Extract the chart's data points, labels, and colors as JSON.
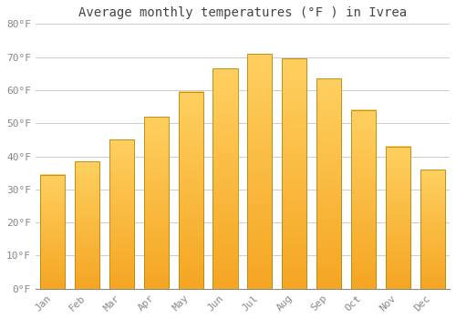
{
  "title": "Average monthly temperatures (°F ) in Ivrea",
  "months": [
    "Jan",
    "Feb",
    "Mar",
    "Apr",
    "May",
    "Jun",
    "Jul",
    "Aug",
    "Sep",
    "Oct",
    "Nov",
    "Dec"
  ],
  "values": [
    34.5,
    38.5,
    45.0,
    52.0,
    59.5,
    66.5,
    71.0,
    69.5,
    63.5,
    54.0,
    43.0,
    36.0
  ],
  "bar_color_bottom": "#F5A623",
  "bar_color_top": "#FFD060",
  "bar_edge_color": "#B8860B",
  "background_color": "#FFFFFF",
  "grid_color": "#CCCCCC",
  "ylim": [
    0,
    80
  ],
  "yticks": [
    0,
    10,
    20,
    30,
    40,
    50,
    60,
    70,
    80
  ],
  "title_fontsize": 10,
  "tick_fontsize": 8,
  "font_family": "monospace",
  "tick_color": "#888888"
}
